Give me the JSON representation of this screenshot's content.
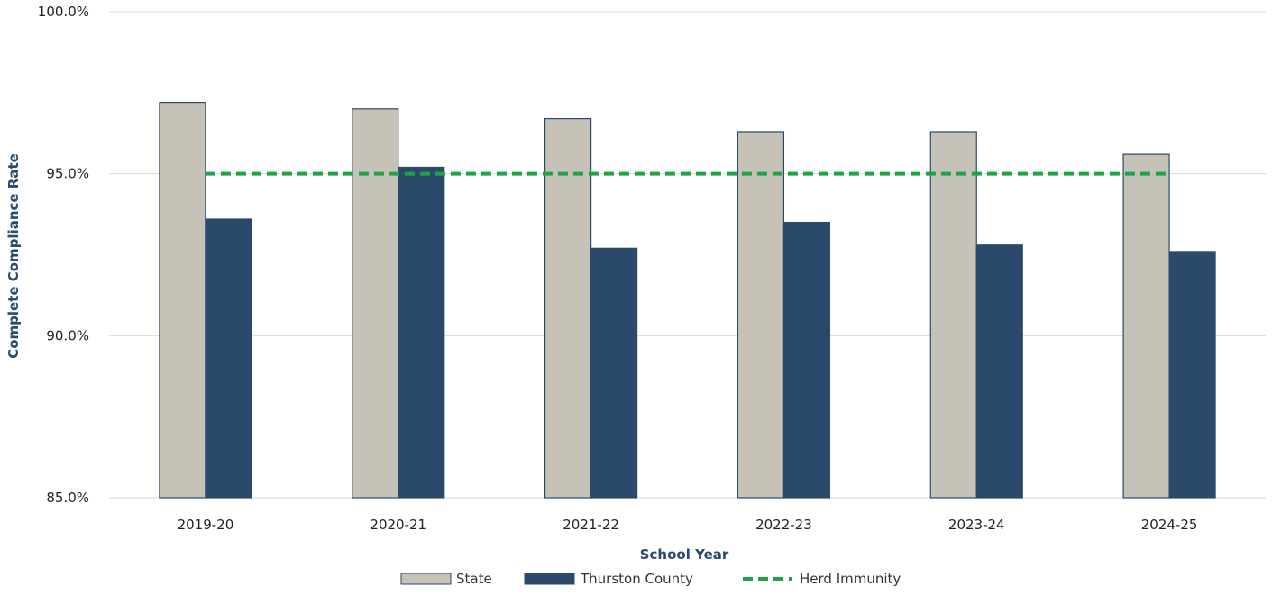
{
  "chart_data": {
    "type": "bar",
    "xlabel": "School Year",
    "ylabel": "Complete Compliance Rate",
    "ylim": [
      85.0,
      100.0
    ],
    "yticks": [
      "85.0%",
      "90.0%",
      "95.0%",
      "100.0%"
    ],
    "ytick_values": [
      85.0,
      90.0,
      95.0,
      100.0
    ],
    "grid": true,
    "legend_position": "bottom",
    "categories": [
      "2019-20",
      "2020-21",
      "2021-22",
      "2022-23",
      "2023-24",
      "2024-25"
    ],
    "series": [
      {
        "name": "State",
        "kind": "bar",
        "color": "#c7c2b7",
        "values": [
          97.2,
          97.0,
          96.7,
          96.3,
          96.3,
          95.6
        ]
      },
      {
        "name": "Thurston County",
        "kind": "bar",
        "color": "#2b4a6b",
        "values": [
          93.6,
          95.2,
          92.7,
          93.5,
          92.8,
          92.6
        ]
      },
      {
        "name": "Herd Immunity",
        "kind": "line",
        "style": "dashed",
        "color": "#1fa34a",
        "values": [
          95.0,
          95.0,
          95.0,
          95.0,
          95.0,
          95.0
        ]
      }
    ]
  },
  "colors": {
    "gridline": "#d9d9d9",
    "bar_outline": "#2b4a6b",
    "axis_title": "#2a4a6e"
  }
}
